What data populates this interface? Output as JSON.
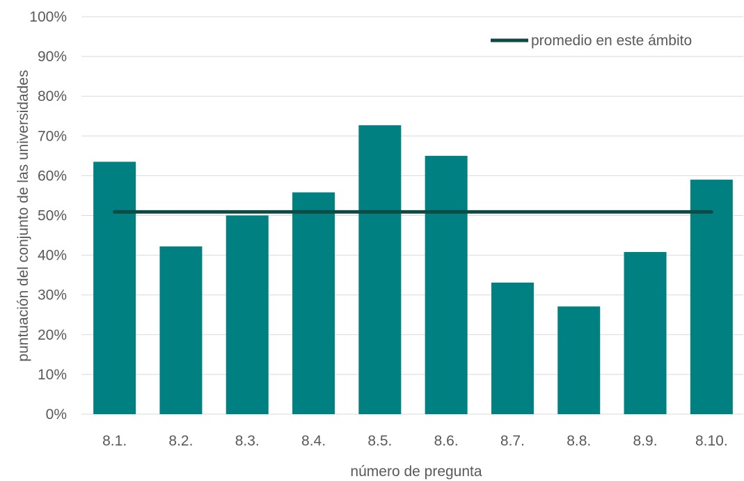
{
  "chart_data": {
    "type": "bar",
    "categories": [
      "8.1.",
      "8.2.",
      "8.3.",
      "8.4.",
      "8.5.",
      "8.6.",
      "8.7.",
      "8.8.",
      "8.9.",
      "8.10."
    ],
    "series": [
      {
        "type": "bar",
        "values": [
          63.5,
          42.2,
          50.0,
          55.8,
          72.7,
          65.0,
          33.1,
          27.1,
          40.8,
          59.0
        ],
        "color": "#008080"
      },
      {
        "name": "promedio en este ámbito",
        "type": "line",
        "values": [
          50.9,
          50.9,
          50.9,
          50.9,
          50.9,
          50.9,
          50.9,
          50.9,
          50.9,
          50.9
        ],
        "color": "#0d4a44"
      }
    ],
    "xlabel": "número de pregunta",
    "ylabel": "puntuación del conjunto de las universidades",
    "ylim": [
      0,
      100
    ],
    "yticks": [
      "0%",
      "10%",
      "20%",
      "30%",
      "40%",
      "50%",
      "60%",
      "70%",
      "80%",
      "90%",
      "100%"
    ],
    "grid": true,
    "legend": "top-right"
  }
}
